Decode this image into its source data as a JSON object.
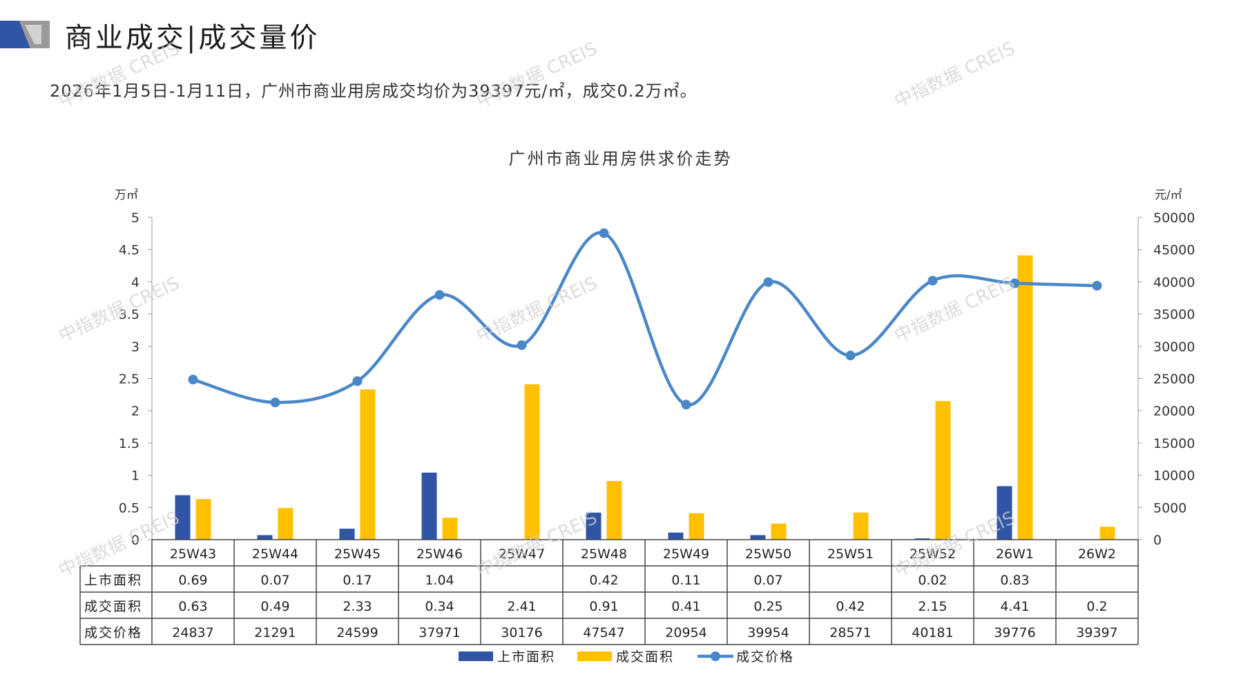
{
  "page": {
    "title": "商业成交|成交量价",
    "summary": "2026年1月5日-1月11日，广州市商业用房成交均价为39397元/㎡，成交0.2万㎡。",
    "watermark": "中指数据 CREIS"
  },
  "colors": {
    "listed": "#2f55a4",
    "traded": "#ffc000",
    "price": "#4a87c9",
    "logo_dark": "#2f55a4",
    "logo_gray": "#9a9a9a"
  },
  "chart_data": {
    "type": "bar",
    "title": "广州市商业用房供求价走势",
    "left_unit": "万㎡",
    "right_unit": "元/㎡",
    "ylim_left": [
      0,
      5
    ],
    "ylim_right": [
      0,
      50000
    ],
    "left_ticks": [
      "0",
      "0.5",
      "1",
      "1.5",
      "2",
      "2.5",
      "3",
      "3.5",
      "4",
      "4.5",
      "5"
    ],
    "right_ticks": [
      "0",
      "5000",
      "10000",
      "15000",
      "20000",
      "25000",
      "30000",
      "35000",
      "40000",
      "45000",
      "50000"
    ],
    "categories": [
      "25W43",
      "25W44",
      "25W45",
      "25W46",
      "25W47",
      "25W48",
      "25W49",
      "25W50",
      "25W51",
      "25W52",
      "26W1",
      "26W2"
    ],
    "series": [
      {
        "name": "上市面积",
        "type": "bar",
        "axis": "left",
        "values": [
          0.69,
          0.07,
          0.17,
          1.04,
          null,
          0.42,
          0.11,
          0.07,
          null,
          0.02,
          0.83,
          null
        ],
        "labels": [
          "0.69",
          "0.07",
          "0.17",
          "1.04",
          "",
          "0.42",
          "0.11",
          "0.07",
          "",
          "0.02",
          "0.83",
          ""
        ]
      },
      {
        "name": "成交面积",
        "type": "bar",
        "axis": "left",
        "values": [
          0.63,
          0.49,
          2.33,
          0.34,
          2.41,
          0.91,
          0.41,
          0.25,
          0.42,
          2.15,
          4.41,
          0.2
        ],
        "labels": [
          "0.63",
          "0.49",
          "2.33",
          "0.34",
          "2.41",
          "0.91",
          "0.41",
          "0.25",
          "0.42",
          "2.15",
          "4.41",
          "0.2"
        ]
      },
      {
        "name": "成交价格",
        "type": "line",
        "axis": "right",
        "values": [
          24837,
          21291,
          24599,
          37971,
          30176,
          47547,
          20954,
          39954,
          28571,
          40181,
          39776,
          39397
        ],
        "labels": [
          "24837",
          "21291",
          "24599",
          "37971",
          "30176",
          "47547",
          "20954",
          "39954",
          "28571",
          "40181",
          "39776",
          "39397"
        ]
      }
    ],
    "legend_position": "bottom",
    "grid": false,
    "data_table": true
  }
}
